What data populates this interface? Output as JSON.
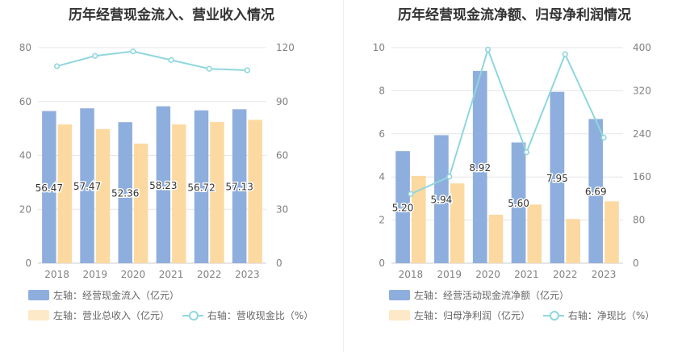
{
  "colors": {
    "bar_primary": "#8eaedd",
    "bar_secondary": "#fcd9a0",
    "line": "#8fd7dd",
    "grid": "#e6e6e6",
    "axis_text": "#808080",
    "title_text": "#333333"
  },
  "chart_data": [
    {
      "type": "bar",
      "title": "历年经营现金流入、营业收入情况",
      "categories": [
        "2018",
        "2019",
        "2020",
        "2021",
        "2022",
        "2023"
      ],
      "y_left": {
        "ticks": [
          "0",
          "20",
          "40",
          "60",
          "80"
        ],
        "ylim": [
          0,
          80
        ]
      },
      "y_right": {
        "ticks": [
          "0",
          "30",
          "60",
          "90",
          "120"
        ],
        "ylim": [
          0,
          120
        ]
      },
      "series": [
        {
          "name": "左轴：经营现金流入（亿元）",
          "kind": "bar",
          "axis": "left",
          "values": [
            56.47,
            57.47,
            52.36,
            58.23,
            56.72,
            57.13
          ],
          "labels": [
            "56.47",
            "57.47",
            "52.36",
            "58.23",
            "56.72",
            "57.13"
          ]
        },
        {
          "name": "左轴：营业总收入（亿元）",
          "kind": "bar",
          "axis": "left",
          "values": [
            51.5,
            49.8,
            44.4,
            51.5,
            52.4,
            53.2
          ]
        },
        {
          "name": "右轴：营收现金比（%）",
          "kind": "line",
          "axis": "right",
          "values": [
            109.7,
            115.4,
            117.9,
            113.1,
            108.2,
            107.4
          ]
        }
      ],
      "grid": true,
      "legend": "bottom"
    },
    {
      "type": "bar",
      "title": "历年经营现金流净额、归母净利润情况",
      "categories": [
        "2018",
        "2019",
        "2020",
        "2021",
        "2022",
        "2023"
      ],
      "y_left": {
        "ticks": [
          "0",
          "2",
          "4",
          "6",
          "8",
          "10"
        ],
        "ylim": [
          0,
          10
        ]
      },
      "y_right": {
        "ticks": [
          "0",
          "80",
          "160",
          "240",
          "320",
          "400"
        ],
        "ylim": [
          0,
          400
        ]
      },
      "series": [
        {
          "name": "左轴：经营活动现金流净额（亿元）",
          "kind": "bar",
          "axis": "left",
          "values": [
            5.2,
            5.94,
            8.92,
            5.6,
            7.95,
            6.69
          ],
          "labels": [
            "5.20",
            "5.94",
            "8.92",
            "5.60",
            "7.95",
            "6.69"
          ]
        },
        {
          "name": "左轴：归母净利润（亿元）",
          "kind": "bar",
          "axis": "left",
          "values": [
            4.05,
            3.7,
            2.25,
            2.72,
            2.05,
            2.87
          ]
        },
        {
          "name": "右轴：净现比（%）",
          "kind": "line",
          "axis": "right",
          "values": [
            128.4,
            160.5,
            396.4,
            205.9,
            387.8,
            233.1
          ]
        }
      ],
      "grid": true,
      "legend": "bottom"
    }
  ]
}
